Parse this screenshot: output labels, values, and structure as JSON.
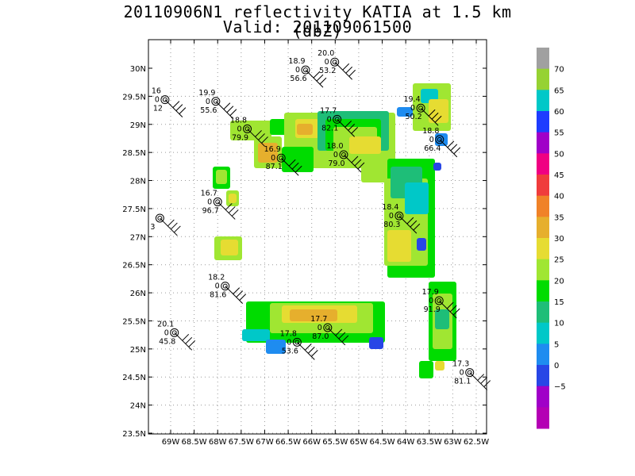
{
  "title": {
    "line1": "20110906N1 reflectivity KATIA at 1.5 km (dbZ)",
    "line2": "Valid: 201109061500"
  },
  "axes": {
    "lat_ticks": [
      "30N",
      "29.5N",
      "29N",
      "28.5N",
      "28N",
      "27.5N",
      "27N",
      "26.5N",
      "26N",
      "25.5N",
      "25N",
      "24.5N",
      "24N",
      "23.5N"
    ],
    "lon_ticks": [
      "69W",
      "68.5W",
      "68W",
      "67.5W",
      "67W",
      "66.5W",
      "66W",
      "65.5W",
      "65W",
      "64.5W",
      "64W",
      "63.5W",
      "63W",
      "62.5W"
    ],
    "lon_range": [
      -69.4,
      -62.4
    ],
    "lat_range": [
      23.4,
      30.5
    ]
  },
  "colorbar": {
    "labels": [
      "70",
      "65",
      "60",
      "55",
      "50",
      "45",
      "40",
      "35",
      "30",
      "25",
      "20",
      "15",
      "10",
      "5",
      "0",
      "−5"
    ],
    "colors": [
      "#a0a0a0",
      "#96d232",
      "#00c8c8",
      "#1e3cff",
      "#a000c8",
      "#f00082",
      "#f03c3c",
      "#f08228",
      "#e6af2d",
      "#e6dc32",
      "#a0e632",
      "#00dc00",
      "#1ebe78",
      "#00c8c8",
      "#1e8cf0",
      "#2846e6",
      "#a000c8",
      "#b400b4"
    ]
  },
  "stations": [
    {
      "lon": -65.51,
      "lat": 30.11,
      "top": "20.0",
      "mid": "0",
      "bot": "53.2"
    },
    {
      "lon": -66.13,
      "lat": 29.97,
      "top": "18.9",
      "mid": "0",
      "bot": "56.6"
    },
    {
      "lon": -69.12,
      "lat": 29.44,
      "top": "16",
      "mid": "0",
      "bot": "12"
    },
    {
      "lon": -68.04,
      "lat": 29.41,
      "top": "19.9",
      "mid": "0",
      "bot": "55.6"
    },
    {
      "lon": -67.37,
      "lat": 28.92,
      "top": "18.8",
      "mid": "0",
      "bot": "79.9"
    },
    {
      "lon": -65.46,
      "lat": 29.09,
      "top": "17.7",
      "mid": "0",
      "bot": "82.1"
    },
    {
      "lon": -63.68,
      "lat": 29.29,
      "top": "19.4",
      "mid": "0",
      "bot": "50.2"
    },
    {
      "lon": -63.28,
      "lat": 28.73,
      "top": "18.8",
      "mid": "0",
      "bot": "66.4"
    },
    {
      "lon": -66.65,
      "lat": 28.4,
      "top": "16.9",
      "mid": "0",
      "bot": "87.1"
    },
    {
      "lon": -65.32,
      "lat": 28.46,
      "top": "18.0",
      "mid": "0",
      "bot": "79.0"
    },
    {
      "lon": -69.23,
      "lat": 27.33,
      "top": "",
      "mid": "",
      "bot": "3"
    },
    {
      "lon": -68.0,
      "lat": 27.62,
      "top": "16.7",
      "mid": "0",
      "bot": "96.7"
    },
    {
      "lon": -64.14,
      "lat": 27.37,
      "top": "18.4",
      "mid": "0",
      "bot": "80.3"
    },
    {
      "lon": -67.84,
      "lat": 26.12,
      "top": "18.2",
      "mid": "0",
      "bot": "81.6"
    },
    {
      "lon": -63.29,
      "lat": 25.86,
      "top": "17.9",
      "mid": "0",
      "bot": "91.9"
    },
    {
      "lon": -68.92,
      "lat": 25.29,
      "top": "20.1",
      "mid": "0",
      "bot": "45.8"
    },
    {
      "lon": -65.66,
      "lat": 25.38,
      "top": "17.7",
      "mid": "0",
      "bot": "87.0"
    },
    {
      "lon": -66.31,
      "lat": 25.12,
      "top": "17.8",
      "mid": "0",
      "bot": "53.6"
    },
    {
      "lon": -62.64,
      "lat": 24.58,
      "top": "17.3",
      "mid": "0",
      "bot": "81.1"
    }
  ]
}
